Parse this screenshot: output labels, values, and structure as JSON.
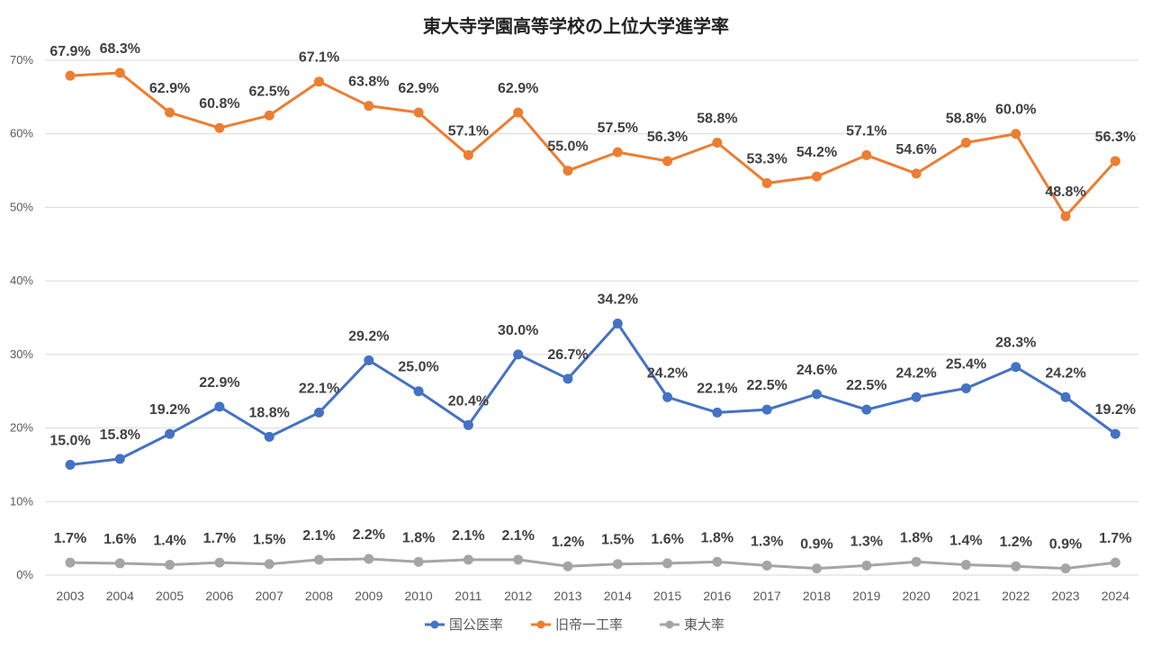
{
  "chart_data": {
    "type": "line",
    "title": "東大寺学園高等学校の上位大学進学率",
    "xlabel": "",
    "ylabel": "",
    "ylim": [
      0,
      70
    ],
    "ytick_values": [
      0,
      10,
      20,
      30,
      40,
      50,
      60,
      70
    ],
    "ytick_labels": [
      "0%",
      "10%",
      "20%",
      "30%",
      "40%",
      "50%",
      "60%",
      "70%"
    ],
    "grid": true,
    "legend_position": "bottom-center",
    "categories": [
      "2003",
      "2004",
      "2005",
      "2006",
      "2007",
      "2008",
      "2009",
      "2010",
      "2011",
      "2012",
      "2013",
      "2014",
      "2015",
      "2016",
      "2017",
      "2018",
      "2019",
      "2020",
      "2021",
      "2022",
      "2023",
      "2024"
    ],
    "series": [
      {
        "name": "国公医率",
        "color": "#4472C4",
        "values": [
          15.0,
          15.8,
          19.2,
          22.9,
          18.8,
          22.1,
          29.2,
          25.0,
          20.4,
          30.0,
          26.7,
          34.2,
          24.2,
          22.1,
          22.5,
          24.6,
          22.5,
          24.2,
          25.4,
          28.3,
          24.2,
          19.2
        ],
        "labels": [
          "15.0%",
          "15.8%",
          "19.2%",
          "22.9%",
          "18.8%",
          "22.1%",
          "29.2%",
          "25.0%",
          "20.4%",
          "30.0%",
          "26.7%",
          "34.2%",
          "24.2%",
          "22.1%",
          "22.5%",
          "24.6%",
          "22.5%",
          "24.2%",
          "25.4%",
          "28.3%",
          "24.2%",
          "19.2%"
        ]
      },
      {
        "name": "旧帝一工率",
        "color": "#ED7D31",
        "values": [
          67.9,
          68.3,
          62.9,
          60.8,
          62.5,
          67.1,
          63.8,
          62.9,
          57.1,
          62.9,
          55.0,
          57.5,
          56.3,
          58.8,
          53.3,
          54.2,
          57.1,
          54.6,
          58.8,
          60.0,
          48.8,
          56.3
        ],
        "labels": [
          "67.9%",
          "68.3%",
          "62.9%",
          "60.8%",
          "62.5%",
          "67.1%",
          "63.8%",
          "62.9%",
          "57.1%",
          "62.9%",
          "55.0%",
          "57.5%",
          "56.3%",
          "58.8%",
          "53.3%",
          "54.2%",
          "57.1%",
          "54.6%",
          "58.8%",
          "60.0%",
          "48.8%",
          "56.3%"
        ]
      },
      {
        "name": "東大率",
        "color": "#A5A5A5",
        "values": [
          1.7,
          1.6,
          1.4,
          1.7,
          1.5,
          2.1,
          2.2,
          1.8,
          2.1,
          2.1,
          1.2,
          1.5,
          1.6,
          1.8,
          1.3,
          0.9,
          1.3,
          1.8,
          1.4,
          1.2,
          0.9,
          1.7
        ],
        "labels": [
          "1.7%",
          "1.6%",
          "1.4%",
          "1.7%",
          "1.5%",
          "2.1%",
          "2.2%",
          "1.8%",
          "2.1%",
          "2.1%",
          "1.2%",
          "1.5%",
          "1.6%",
          "1.8%",
          "1.3%",
          "0.9%",
          "1.3%",
          "1.8%",
          "1.4%",
          "1.2%",
          "0.9%",
          "1.7%"
        ]
      }
    ]
  }
}
